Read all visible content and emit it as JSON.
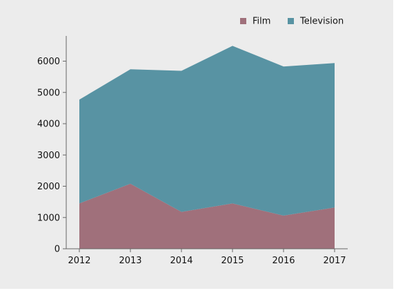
{
  "chart_data": {
    "type": "area",
    "stacked": true,
    "categories": [
      "2012",
      "2013",
      "2014",
      "2015",
      "2016",
      "2017"
    ],
    "series": [
      {
        "name": "Film",
        "values": [
          1450,
          2080,
          1180,
          1450,
          1060,
          1320
        ],
        "color": "#a0707b"
      },
      {
        "name": "Television",
        "values": [
          3320,
          3660,
          4510,
          5040,
          4770,
          4620
        ],
        "color": "#5893a3"
      }
    ],
    "ylim": [
      0,
      7000
    ],
    "yticks": [
      0,
      1000,
      2000,
      3000,
      4000,
      5000,
      6000
    ],
    "title": "",
    "xlabel": "",
    "ylabel": "",
    "grid": false,
    "legend_position": "top-right"
  }
}
